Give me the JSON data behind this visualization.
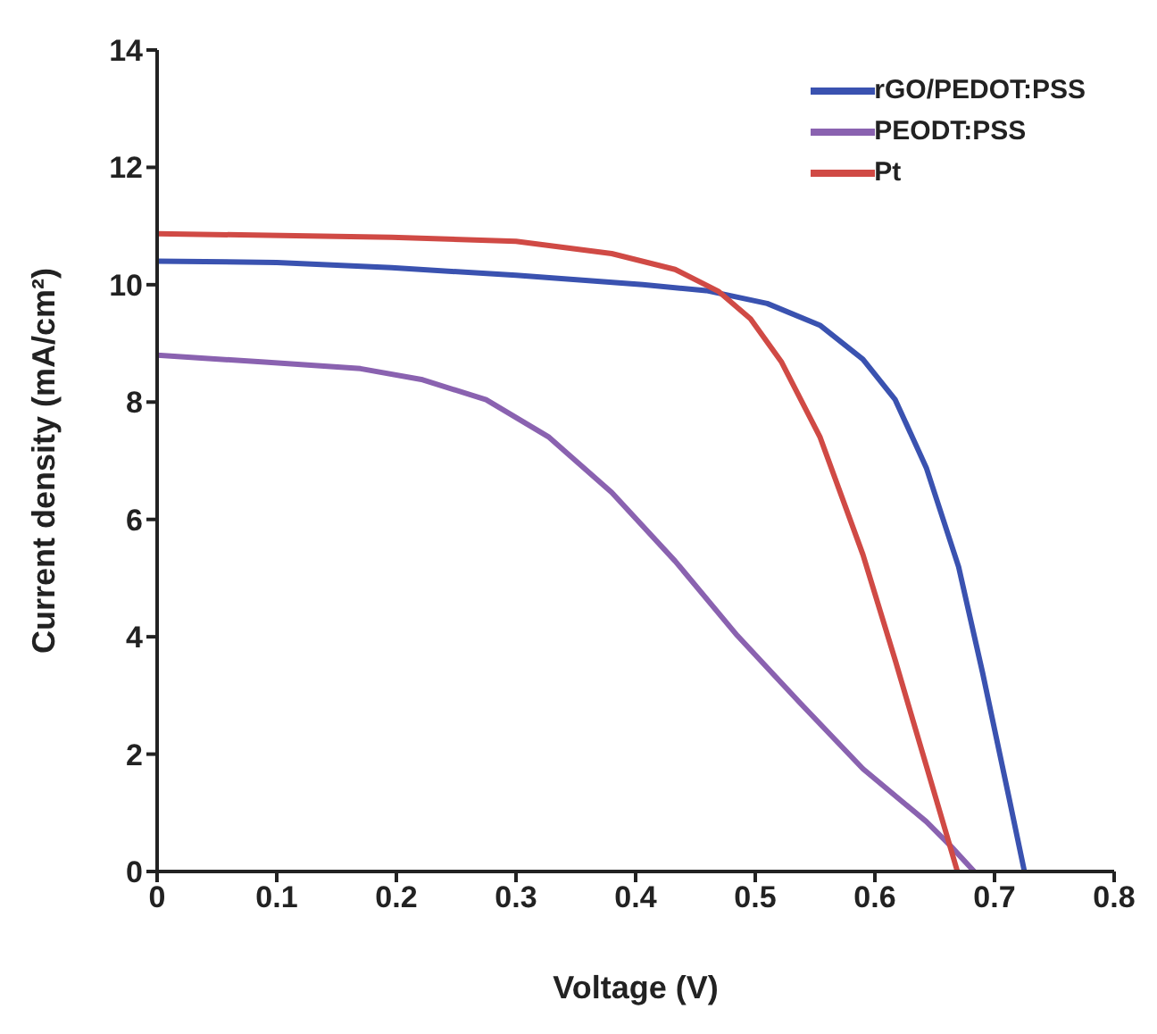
{
  "chart_data": {
    "type": "line",
    "xlabel": "Voltage (V)",
    "ylabel": "Current density (mA/cm²)",
    "xlim": [
      0,
      0.8
    ],
    "xticks": [
      0,
      0.1,
      0.2,
      0.3,
      0.4,
      0.5,
      0.6,
      0.7,
      0.8
    ],
    "ylim": [
      0,
      14
    ],
    "yticks": [
      0,
      2,
      4,
      6,
      8,
      10,
      12,
      14
    ],
    "grid": false,
    "legend": "top right",
    "marker": "none",
    "line_style": "solid",
    "series": [
      {
        "name": "rGO/PEDOT:PSS",
        "color": "#3a52b0",
        "x": [
          0,
          0.1,
          0.196,
          0.3,
          0.406,
          0.459,
          0.51,
          0.554,
          0.59,
          0.617,
          0.643,
          0.67,
          0.69,
          0.712,
          0.725
        ],
        "values": [
          10.4,
          10.38,
          10.29,
          10.16,
          10.0,
          9.9,
          9.68,
          9.31,
          8.73,
          8.04,
          6.88,
          5.19,
          3.39,
          1.27,
          0
        ]
      },
      {
        "name": "PEODT:PSS",
        "color": "#8a62b0",
        "x": [
          0,
          0.09,
          0.17,
          0.222,
          0.275,
          0.327,
          0.38,
          0.433,
          0.485,
          0.538,
          0.59,
          0.643,
          0.664,
          0.683
        ],
        "values": [
          8.8,
          8.68,
          8.57,
          8.38,
          8.04,
          7.41,
          6.46,
          5.29,
          4.02,
          2.86,
          1.75,
          0.85,
          0.42,
          0
        ]
      },
      {
        "name": "Pt",
        "color": "#d04a45",
        "x": [
          0,
          0.196,
          0.3,
          0.38,
          0.433,
          0.469,
          0.496,
          0.522,
          0.554,
          0.59,
          0.617,
          0.643,
          0.669
        ],
        "values": [
          10.87,
          10.81,
          10.74,
          10.53,
          10.26,
          9.89,
          9.42,
          8.68,
          7.41,
          5.4,
          3.6,
          1.8,
          0
        ]
      }
    ]
  }
}
